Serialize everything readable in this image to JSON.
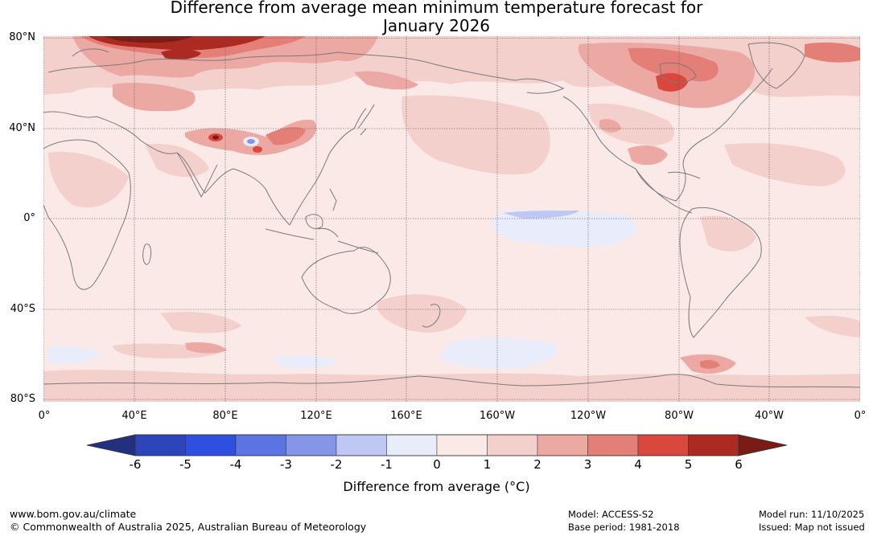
{
  "title": {
    "line1": "Difference from average mean minimum temperature forecast for",
    "line2": "January 2026"
  },
  "map": {
    "lat_labels": [
      "80°N",
      "40°N",
      "0°",
      "40°S",
      "80°S"
    ],
    "lon_labels": [
      "0°",
      "40°E",
      "80°E",
      "120°E",
      "160°E",
      "160°W",
      "120°W",
      "80°W",
      "40°W",
      "0°"
    ],
    "colors": {
      "ocean_base": "#fbe9e8",
      "coast": "#7a7a7a",
      "grid": "#555555"
    }
  },
  "colorbar": {
    "ticks": [
      "-6",
      "-5",
      "-4",
      "-3",
      "-2",
      "-1",
      "0",
      "1",
      "2",
      "3",
      "4",
      "5",
      "6"
    ],
    "colors": [
      "#23307f",
      "#2c45b8",
      "#2f4fe0",
      "#5b74e2",
      "#8596e8",
      "#bfc8f2",
      "#e8ecfb",
      "#fbe9e8",
      "#f4d0cd",
      "#eca9a4",
      "#e47f78",
      "#d9473d",
      "#ad2a22",
      "#7a1b16"
    ],
    "label": "Difference from average (°C)"
  },
  "footer": {
    "website": "www.bom.gov.au/climate",
    "copyright": "© Commonwealth of Australia 2025, Australian Bureau of Meteorology",
    "model": "Model: ACCESS-S2",
    "base_period": "Base period: 1981-2018",
    "model_run": "Model run: 11/10/2025",
    "issued": "Issued: Map not issued"
  }
}
